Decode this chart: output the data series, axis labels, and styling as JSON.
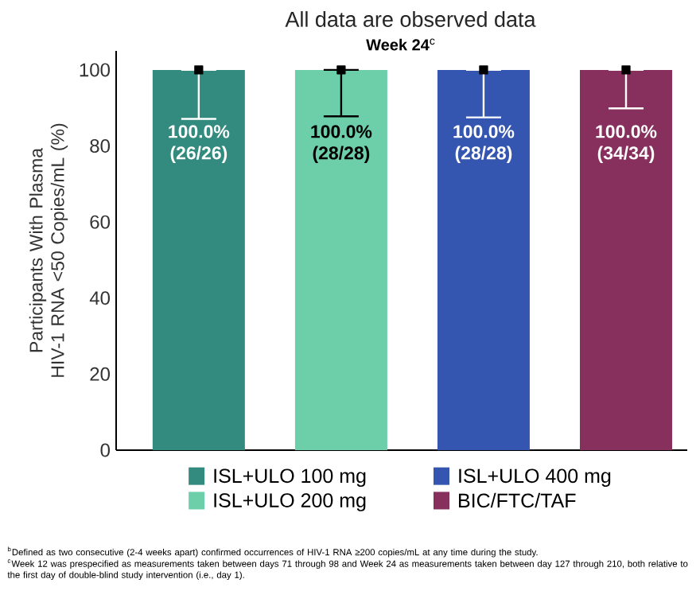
{
  "chart_data": {
    "type": "bar",
    "title": "All data are observed data",
    "subtitle": "**Week 24**$^{c}$",
    "ylabel": "Participants With Plasma HIV-1 RNA <50 Copies/mL (%)",
    "categories": [
      null,
      null,
      null,
      null
    ],
    "series": [
      {
        "name": "ISL+ULO 100 mg",
        "color": "#338a7e",
        "values": [
          100,
          null,
          null,
          null
        ],
        "errors": [
          [
            87.1,
            100
          ],
          null,
          null,
          null
        ],
        "value_labels": [
          "100.0% (26/26)",
          null,
          null,
          null
        ]
      },
      {
        "name": "ISL+ULO 200 mg",
        "color": "#6ccfaa",
        "values": [
          null,
          100,
          null,
          null
        ],
        "errors": [
          null,
          [
            87.8,
            100
          ],
          null,
          null
        ],
        "value_labels": [
          null,
          "100.0% (28/28)",
          null,
          null
        ]
      },
      {
        "name": "ISL+ULO 400 mg",
        "color": "#3556b0",
        "values": [
          null,
          null,
          100,
          null
        ],
        "errors": [
          null,
          null,
          [
            87.5,
            100
          ],
          null
        ],
        "value_labels": [
          null,
          null,
          "100.0% (28/28)",
          null
        ]
      },
      {
        "name": "BIC/FTC/TAF",
        "color": "#87305e",
        "values": [
          null,
          null,
          null,
          100
        ],
        "errors": [
          null,
          null,
          null,
          [
            89.9,
            100
          ]
        ],
        "value_labels": [
          null,
          null,
          null,
          "100.0% (34/34)"
        ]
      },
      {
        "type": "scatter",
        "color": "#000000",
        "values": [
          100,
          100,
          100,
          100
        ]
      }
    ],
    "ylim": [
      0,
      105
    ],
    "yticks": [
      0,
      20,
      40,
      60,
      80,
      100
    ],
    "marker": "square",
    "legend": "bottom",
    "annotations": [
      "$^{b}$Defined as two consecutive (2-4 weeks apart) confirmed occurrences of HIV-1 RNA ≥200 copies/mL at any time during the study.",
      "$^{c}$Week 12 was prespecified as measurements taken between days 71 through 98 and Week 24 as measurements taken between day 127 through 210, both relative to the first day of double-blind study intervention (i.e., day 1)."
    ]
  }
}
